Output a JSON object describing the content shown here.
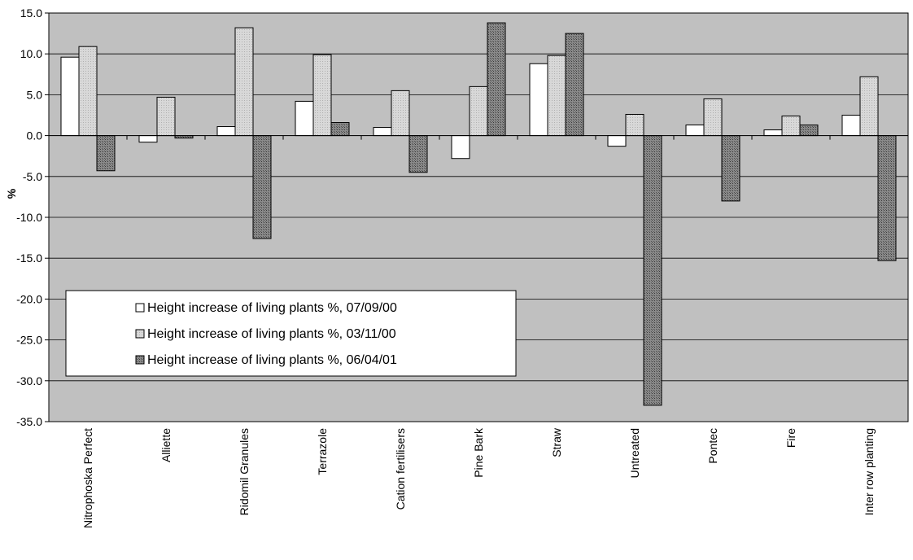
{
  "chart_data": {
    "type": "bar",
    "title": "",
    "xlabel": "",
    "ylabel": "%",
    "ylim": [
      -35,
      15
    ],
    "ytick_step": 5,
    "yticks": [
      "15.0",
      "10.0",
      "5.0",
      "0.0",
      "-5.0",
      "-10.0",
      "-15.0",
      "-20.0",
      "-25.0",
      "-30.0",
      "-35.0"
    ],
    "grid": true,
    "legend_position": "bottom-left",
    "categories": [
      "Nitrophoska Perfect",
      "Alliette",
      "Ridomil Granules",
      "Terrazole",
      "Cation fertilisers",
      "Pine Bark",
      "Straw",
      "Untreated",
      "Pontec",
      "Fire",
      "Inter row planting"
    ],
    "series": [
      {
        "name": "Height increase of living plants %, 07/09/00",
        "color": "#ffffff",
        "values": [
          9.6,
          -0.8,
          1.1,
          4.2,
          1.0,
          -2.8,
          8.8,
          -1.3,
          1.3,
          0.7,
          2.5
        ]
      },
      {
        "name": "Height increase of living plants %, 03/11/00",
        "color": "#dcdcdc",
        "values": [
          10.9,
          4.7,
          13.2,
          9.9,
          5.5,
          6.0,
          9.8,
          2.6,
          4.5,
          2.4,
          7.2
        ]
      },
      {
        "name": "Height increase of living plants %, 06/04/01",
        "color": "#7f7f7f",
        "values": [
          -4.3,
          -0.3,
          -12.6,
          1.6,
          -4.5,
          13.8,
          12.5,
          -33.0,
          -8.0,
          1.3,
          -15.3
        ]
      }
    ],
    "plot_background": "#c0c0c0"
  }
}
